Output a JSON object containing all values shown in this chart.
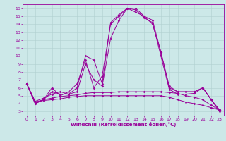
{
  "title": "",
  "xlabel": "Windchill (Refroidissement éolien,°C)",
  "bg_color": "#cce8e8",
  "line_color": "#990099",
  "grid_color": "#b0d0d0",
  "xlim": [
    -0.5,
    23.5
  ],
  "ylim": [
    2.5,
    16.5
  ],
  "xticks": [
    0,
    1,
    2,
    3,
    4,
    5,
    6,
    7,
    8,
    9,
    10,
    11,
    12,
    13,
    14,
    15,
    16,
    17,
    18,
    19,
    20,
    21,
    22,
    23
  ],
  "yticks": [
    3,
    4,
    5,
    6,
    7,
    8,
    9,
    10,
    11,
    12,
    13,
    14,
    15,
    16
  ],
  "lines": [
    {
      "x": [
        0,
        1,
        2,
        3,
        4,
        5,
        6,
        7,
        8,
        9,
        10,
        11,
        12,
        13,
        14,
        15,
        16,
        17,
        18,
        19,
        20,
        21,
        22,
        23
      ],
      "y": [
        6.5,
        4.0,
        4.5,
        6.0,
        5.0,
        5.5,
        6.5,
        9.5,
        6.0,
        7.5,
        14.0,
        15.0,
        16.0,
        16.0,
        15.0,
        14.0,
        10.5,
        6.0,
        5.5,
        5.5,
        5.5,
        6.0,
        4.5,
        3.0
      ]
    },
    {
      "x": [
        0,
        1,
        2,
        3,
        4,
        5,
        6,
        7,
        8,
        9,
        10,
        11,
        12,
        13,
        14,
        15,
        16,
        17,
        18,
        19,
        20,
        21,
        22,
        23
      ],
      "y": [
        6.5,
        4.0,
        4.5,
        5.5,
        5.2,
        5.2,
        6.0,
        10.0,
        9.5,
        6.5,
        14.2,
        15.2,
        16.0,
        15.8,
        14.8,
        14.2,
        10.0,
        5.8,
        5.2,
        5.2,
        5.3,
        6.0,
        4.5,
        3.2
      ]
    },
    {
      "x": [
        0,
        1,
        2,
        3,
        4,
        5,
        6,
        7,
        8,
        9,
        10,
        11,
        12,
        13,
        14,
        15,
        16,
        17,
        18,
        19,
        20,
        21,
        22,
        23
      ],
      "y": [
        6.5,
        4.3,
        4.7,
        5.2,
        5.5,
        5.2,
        5.5,
        9.0,
        7.0,
        6.2,
        12.2,
        14.5,
        16.0,
        15.5,
        15.0,
        14.5,
        10.5,
        6.2,
        5.5,
        5.5,
        5.5,
        6.0,
        4.5,
        3.2
      ]
    },
    {
      "x": [
        0,
        1,
        2,
        3,
        4,
        5,
        6,
        7,
        8,
        9,
        10,
        11,
        12,
        13,
        14,
        15,
        16,
        17,
        18,
        19,
        20,
        21,
        22,
        23
      ],
      "y": [
        6.5,
        4.2,
        4.5,
        4.7,
        4.9,
        5.0,
        5.1,
        5.3,
        5.4,
        5.4,
        5.4,
        5.5,
        5.5,
        5.5,
        5.5,
        5.5,
        5.5,
        5.4,
        5.3,
        5.0,
        4.8,
        4.5,
        3.8,
        3.2
      ]
    },
    {
      "x": [
        0,
        1,
        2,
        3,
        4,
        5,
        6,
        7,
        8,
        9,
        10,
        11,
        12,
        13,
        14,
        15,
        16,
        17,
        18,
        19,
        20,
        21,
        22,
        23
      ],
      "y": [
        6.5,
        4.2,
        4.4,
        4.5,
        4.6,
        4.8,
        4.9,
        5.0,
        5.0,
        5.0,
        5.0,
        5.0,
        5.0,
        5.0,
        5.0,
        5.0,
        5.0,
        4.8,
        4.5,
        4.2,
        4.0,
        3.8,
        3.5,
        3.2
      ]
    }
  ]
}
